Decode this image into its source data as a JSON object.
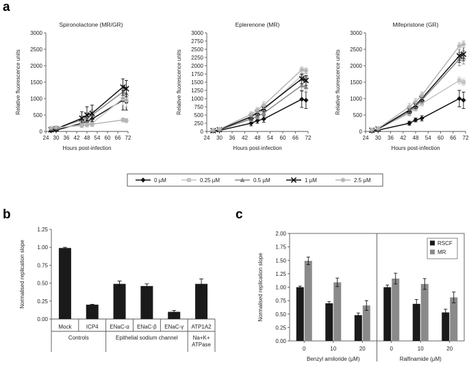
{
  "panel_labels": {
    "a": "a",
    "b": "b",
    "c": "c"
  },
  "a_legend": {
    "entries": [
      {
        "label": "0 µM",
        "color": "#111111",
        "marker": "diamond"
      },
      {
        "label": "0.25 µM",
        "color": "#c4c4c4",
        "marker": "square"
      },
      {
        "label": "0.5 µM",
        "color": "#888888",
        "marker": "triangle"
      },
      {
        "label": "1 µM",
        "color": "#111111",
        "marker": "x"
      },
      {
        "label": "2.5 µM",
        "color": "#b4b4b4",
        "marker": "star"
      }
    ]
  },
  "chart_data": [
    {
      "type": "line",
      "title": "Spironolactone (MR/GR)",
      "xlabel": "Hours post-infection",
      "ylabel": "Relative fluorescence units",
      "xlim": [
        24,
        72
      ],
      "ylim": [
        0,
        3000
      ],
      "xticks": [
        "24",
        "30",
        "36",
        "42",
        "48",
        "54",
        "60",
        "66",
        "72"
      ],
      "yticks": [
        "0",
        "500",
        "1000",
        "1500",
        "2000",
        "2500",
        "3000"
      ],
      "x": [
        27,
        30,
        45,
        48,
        51,
        69,
        71
      ],
      "series": [
        {
          "name": "0 µM",
          "values": [
            20,
            40,
            250,
            300,
            380,
            950,
            900
          ],
          "errors": [
            20,
            20,
            100,
            120,
            150,
            300,
            250
          ]
        },
        {
          "name": "0.25 µM",
          "values": [
            80,
            100,
            200,
            220,
            250,
            1000,
            950
          ],
          "errors": [
            30,
            30,
            80,
            80,
            100,
            200,
            200
          ]
        },
        {
          "name": "0.5 µM",
          "values": [
            60,
            90,
            350,
            420,
            500,
            1200,
            1150
          ],
          "errors": [
            30,
            30,
            120,
            150,
            150,
            200,
            200
          ]
        },
        {
          "name": "1 µM",
          "values": [
            50,
            80,
            400,
            500,
            550,
            1350,
            1300
          ],
          "errors": [
            30,
            30,
            200,
            250,
            250,
            250,
            250
          ]
        },
        {
          "name": "2.5 µM",
          "values": [
            100,
            120,
            180,
            200,
            220,
            350,
            330
          ],
          "errors": [
            30,
            30,
            50,
            50,
            60,
            60,
            60
          ]
        }
      ]
    },
    {
      "type": "line",
      "title": "Eplerenone (MR)",
      "xlabel": "Hours post-infection",
      "ylabel": "Relative fluorescence units",
      "xlim": [
        24,
        72
      ],
      "ylim": [
        0,
        3000
      ],
      "xticks": [
        "24",
        "30",
        "36",
        "42",
        "48",
        "54",
        "60",
        "66",
        "72"
      ],
      "yticks": [
        "0",
        "250",
        "500",
        "750",
        "1000",
        "1250",
        "1500",
        "1750",
        "2000",
        "2250",
        "2500",
        "2750",
        "3000"
      ],
      "x": [
        27,
        30,
        45,
        48,
        51,
        69,
        71
      ],
      "series": [
        {
          "name": "0 µM",
          "values": [
            10,
            30,
            250,
            330,
            380,
            980,
            950
          ],
          "errors": [
            20,
            20,
            80,
            80,
            100,
            250,
            250
          ]
        },
        {
          "name": "0.25 µM",
          "values": [
            30,
            60,
            420,
            520,
            650,
            1700,
            1650
          ],
          "errors": [
            20,
            20,
            80,
            80,
            100,
            100,
            100
          ]
        },
        {
          "name": "0.5 µM",
          "values": [
            20,
            50,
            380,
            460,
            560,
            1400,
            1350
          ],
          "errors": [
            20,
            20,
            80,
            80,
            100,
            150,
            150
          ]
        },
        {
          "name": "1 µM",
          "values": [
            25,
            55,
            450,
            580,
            700,
            1600,
            1550
          ],
          "errors": [
            20,
            20,
            100,
            100,
            100,
            150,
            150
          ]
        },
        {
          "name": "2.5 µM",
          "values": [
            40,
            70,
            520,
            650,
            800,
            1880,
            1850
          ],
          "errors": [
            20,
            20,
            80,
            80,
            100,
            80,
            80
          ]
        }
      ]
    },
    {
      "type": "line",
      "title": "Mifepristone (GR)",
      "xlabel": "Hours post-infection",
      "ylabel": "Relative fluorescence units",
      "xlim": [
        24,
        72
      ],
      "ylim": [
        0,
        3000
      ],
      "xticks": [
        "24",
        "30",
        "36",
        "42",
        "48",
        "54",
        "60",
        "66",
        "72"
      ],
      "yticks": [
        "0",
        "500",
        "1000",
        "1500",
        "2000",
        "2500",
        "3000"
      ],
      "x": [
        27,
        30,
        45,
        48,
        51,
        69,
        71
      ],
      "series": [
        {
          "name": "0 µM",
          "values": [
            10,
            40,
            250,
            350,
            400,
            1000,
            950
          ],
          "errors": [
            20,
            20,
            60,
            60,
            80,
            250,
            250
          ]
        },
        {
          "name": "0.25 µM",
          "values": [
            40,
            80,
            550,
            700,
            850,
            1550,
            1500
          ],
          "errors": [
            20,
            20,
            80,
            80,
            80,
            100,
            100
          ]
        },
        {
          "name": "0.5 µM",
          "values": [
            30,
            70,
            600,
            750,
            950,
            2200,
            2250
          ],
          "errors": [
            20,
            20,
            100,
            100,
            100,
            200,
            200
          ]
        },
        {
          "name": "1 µM",
          "values": [
            35,
            75,
            650,
            800,
            1000,
            2300,
            2350
          ],
          "errors": [
            20,
            20,
            100,
            100,
            100,
            200,
            200
          ]
        },
        {
          "name": "2.5 µM",
          "values": [
            50,
            90,
            750,
            900,
            1100,
            2600,
            2650
          ],
          "errors": [
            20,
            20,
            100,
            100,
            100,
            100,
            100
          ]
        }
      ]
    },
    {
      "type": "bar",
      "ylabel": "Normalised replication slope",
      "ylim": [
        0,
        1.25
      ],
      "yticks": [
        "0.00",
        "0.25",
        "0.50",
        "0.75",
        "1.00",
        "1.25"
      ],
      "categories": [
        "Mock",
        "ICP4",
        "ENaC-α",
        "ENaC-β",
        "ENaC-γ",
        "ATP1A2"
      ],
      "values": [
        0.99,
        0.2,
        0.49,
        0.46,
        0.1,
        0.49
      ],
      "errors": [
        0.01,
        0.005,
        0.04,
        0.03,
        0.02,
        0.07
      ],
      "color": "#1a1a1a",
      "groups": [
        {
          "label": "Controls",
          "lines": [
            "Controls"
          ],
          "span": [
            0,
            1
          ]
        },
        {
          "label": "Epithelial sodium channel",
          "lines": [
            "Epithelial sodium channel"
          ],
          "span": [
            2,
            4
          ]
        },
        {
          "label": "Na+K+ ATPase",
          "lines": [
            "Na+K+",
            "ATPase"
          ],
          "span": [
            5,
            5
          ]
        }
      ]
    },
    {
      "type": "bar",
      "ylabel": "Normalised replication slope",
      "ylim": [
        0,
        2.0
      ],
      "yticks": [
        "0.00",
        "0.25",
        "0.50",
        "0.75",
        "1.00",
        "1.25",
        "1.50",
        "1.75",
        "2.00"
      ],
      "categories": [
        "0",
        "10",
        "20",
        "0",
        "10",
        "20"
      ],
      "groups": [
        {
          "label": "Benzyl amiloride (μM)",
          "span": [
            0,
            2
          ]
        },
        {
          "label": "Ralfinamide (μM)",
          "span": [
            3,
            5
          ]
        }
      ],
      "series": [
        {
          "name": "RSCF",
          "color": "#1a1a1a",
          "values": [
            1.0,
            0.7,
            0.48,
            1.0,
            0.69,
            0.53
          ],
          "errors": [
            0.02,
            0.03,
            0.04,
            0.04,
            0.08,
            0.06
          ]
        },
        {
          "name": "MR",
          "color": "#8a8a8a",
          "values": [
            1.49,
            1.09,
            0.66,
            1.16,
            1.06,
            0.81
          ],
          "errors": [
            0.07,
            0.08,
            0.09,
            0.1,
            0.1,
            0.1
          ]
        }
      ],
      "legend": "top-right"
    }
  ]
}
